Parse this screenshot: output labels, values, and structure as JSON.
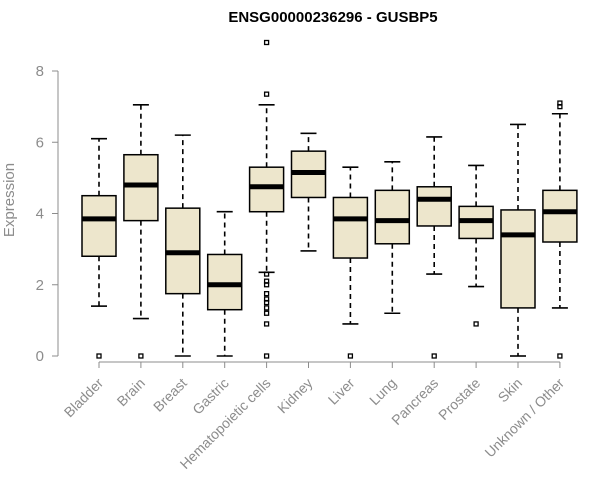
{
  "chart_data": {
    "type": "box",
    "title": "ENSG00000236296 - GUSBP5",
    "xlabel": "",
    "ylabel": "Expression",
    "ylim": [
      0,
      8
    ],
    "yticks": [
      0,
      2,
      4,
      6,
      8
    ],
    "grid": false,
    "categories": [
      "Bladder",
      "Brain",
      "Breast",
      "Gastric",
      "Hematopoietic cells",
      "Kidney",
      "Liver",
      "Lung",
      "Pancreas",
      "Prostate",
      "Skin",
      "Unknown / Other"
    ],
    "boxes": [
      {
        "category": "Bladder",
        "whisker_low": 1.4,
        "q1": 2.8,
        "median": 3.85,
        "q3": 4.5,
        "whisker_high": 6.1,
        "outliers": [
          0
        ]
      },
      {
        "category": "Brain",
        "whisker_low": 1.05,
        "q1": 3.8,
        "median": 4.8,
        "q3": 5.65,
        "whisker_high": 7.05,
        "outliers": [
          0
        ]
      },
      {
        "category": "Breast",
        "whisker_low": 0,
        "q1": 1.75,
        "median": 2.9,
        "q3": 4.15,
        "whisker_high": 6.2,
        "outliers": []
      },
      {
        "category": "Gastric",
        "whisker_low": 0,
        "q1": 1.3,
        "median": 2.0,
        "q3": 2.85,
        "whisker_high": 4.05,
        "outliers": []
      },
      {
        "category": "Hematopoietic cells",
        "whisker_low": 2.35,
        "q1": 4.05,
        "median": 4.75,
        "q3": 5.3,
        "whisker_high": 7.05,
        "outliers": [
          8.8,
          7.35,
          2.3,
          2.1,
          2.0,
          1.75,
          1.6,
          1.5,
          1.35,
          1.2,
          0.9,
          0
        ]
      },
      {
        "category": "Kidney",
        "whisker_low": 2.95,
        "q1": 4.45,
        "median": 5.15,
        "q3": 5.75,
        "whisker_high": 6.25,
        "outliers": []
      },
      {
        "category": "Liver",
        "whisker_low": 0.9,
        "q1": 2.75,
        "median": 3.85,
        "q3": 4.45,
        "whisker_high": 5.3,
        "outliers": [
          0
        ]
      },
      {
        "category": "Lung",
        "whisker_low": 1.2,
        "q1": 3.15,
        "median": 3.8,
        "q3": 4.65,
        "whisker_high": 5.45,
        "outliers": []
      },
      {
        "category": "Pancreas",
        "whisker_low": 2.3,
        "q1": 3.65,
        "median": 4.4,
        "q3": 4.75,
        "whisker_high": 6.15,
        "outliers": [
          0
        ]
      },
      {
        "category": "Prostate",
        "whisker_low": 1.95,
        "q1": 3.3,
        "median": 3.8,
        "q3": 4.2,
        "whisker_high": 5.35,
        "outliers": [
          0.9
        ]
      },
      {
        "category": "Skin",
        "whisker_low": 0,
        "q1": 1.35,
        "median": 3.4,
        "q3": 4.1,
        "whisker_high": 6.5,
        "outliers": []
      },
      {
        "category": "Unknown / Other",
        "whisker_low": 1.35,
        "q1": 3.2,
        "median": 4.05,
        "q3": 4.65,
        "whisker_high": 6.8,
        "outliers": [
          7.1,
          7.0,
          0
        ]
      }
    ],
    "colors": {
      "box_fill": "#ede6cc",
      "stroke": "#000000",
      "axis": "#8c8c8c"
    }
  }
}
